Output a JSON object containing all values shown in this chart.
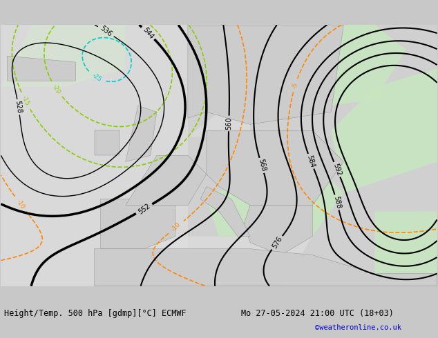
{
  "title_left": "Height/Temp. 500 hPa [gdmp][°C] ECMWF",
  "title_right": "Mo 27-05-2024 21:00 UTC (18+03)",
  "credit": "©weatheronline.co.uk",
  "bg_color": "#d0d0d0",
  "land_color": "#d8d8d8",
  "sea_color": "#e8e8e8",
  "green_fill": "#c8e6c0",
  "figsize": [
    6.34,
    4.9
  ],
  "dpi": 100,
  "bottom_text_color": "#000000",
  "credit_color": "#0000cc",
  "height_line_color": "#000000",
  "temp_neg_color_cold": "#00cccc",
  "temp_neg_color_mid": "#88cc00",
  "temp_pos_color": "#ff8800"
}
